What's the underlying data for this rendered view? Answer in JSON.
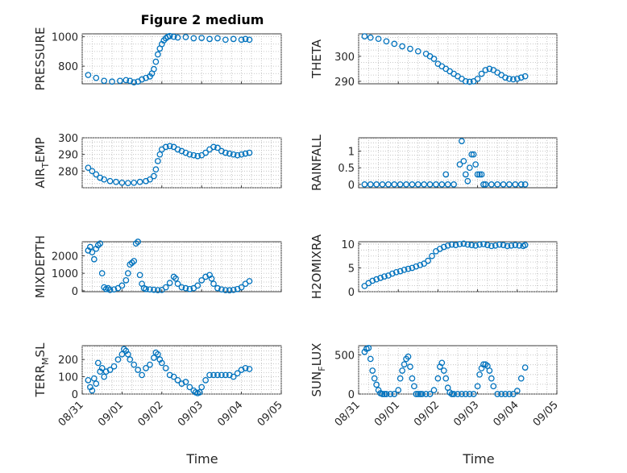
{
  "figure": {
    "title": "Figure 2 medium",
    "xlabel": "Time",
    "marker_color": "#0072BD",
    "marker": "circle"
  },
  "chart_data": [
    {
      "type": "scatter",
      "id": "pressure",
      "ylabel": "PRESSURE",
      "ylabel_sub": null,
      "title": "Figure 2 medium",
      "xlim": [
        "08/31",
        "09/05"
      ],
      "ylim": [
        680,
        1020
      ],
      "xticks": [
        "08/31",
        "09/01",
        "09/02",
        "09/03",
        "09/04",
        "09/05"
      ],
      "xtick_labels_shown": false,
      "yticks": [
        800,
        1000
      ],
      "grid": true,
      "series": [
        {
          "x": [
            0.15,
            0.35,
            0.55,
            0.75,
            0.95,
            1.1,
            1.2,
            1.3,
            1.4,
            1.5,
            1.6,
            1.7,
            1.75,
            1.8,
            1.85,
            1.9,
            1.95,
            2.0,
            2.05,
            2.1,
            2.15,
            2.2,
            2.3,
            2.4,
            2.6,
            2.8,
            3.0,
            3.2,
            3.4,
            3.6,
            3.8,
            4.0,
            4.1,
            4.2
          ],
          "y": [
            740,
            720,
            700,
            695,
            700,
            705,
            700,
            690,
            695,
            710,
            720,
            730,
            750,
            780,
            830,
            880,
            920,
            950,
            975,
            990,
            1000,
            1005,
            1000,
            995,
            998,
            990,
            992,
            985,
            990,
            980,
            985,
            980,
            985,
            980
          ]
        }
      ]
    },
    {
      "type": "scatter",
      "id": "theta",
      "ylabel": "THETA",
      "ylabel_sub": null,
      "xlim": [
        "08/31",
        "09/05"
      ],
      "ylim": [
        289,
        309
      ],
      "xticks": [
        "08/31",
        "09/01",
        "09/02",
        "09/03",
        "09/04",
        "09/05"
      ],
      "xtick_labels_shown": false,
      "yticks": [
        290,
        300
      ],
      "grid": true,
      "series": [
        {
          "x": [
            0.15,
            0.3,
            0.5,
            0.7,
            0.9,
            1.1,
            1.3,
            1.5,
            1.7,
            1.8,
            1.9,
            2.0,
            2.1,
            2.2,
            2.3,
            2.4,
            2.5,
            2.6,
            2.7,
            2.8,
            2.9,
            3.0,
            3.1,
            3.2,
            3.3,
            3.4,
            3.5,
            3.6,
            3.7,
            3.8,
            3.9,
            4.0,
            4.1,
            4.2
          ],
          "y": [
            308,
            307.5,
            307,
            306,
            305,
            304,
            303,
            302,
            301,
            300,
            299,
            297,
            296,
            295,
            294,
            293,
            292,
            291,
            290,
            289.8,
            290,
            291,
            293,
            294.5,
            295,
            294.5,
            293.5,
            292.5,
            291.5,
            291,
            290.8,
            291,
            291.5,
            292
          ]
        }
      ]
    },
    {
      "type": "scatter",
      "id": "air-temp",
      "ylabel": "AIR",
      "ylabel_sub": "T",
      "ylabel_tail": "EMP",
      "xlim": [
        "08/31",
        "09/05"
      ],
      "ylim": [
        270,
        300
      ],
      "xticks": [
        "08/31",
        "09/01",
        "09/02",
        "09/03",
        "09/04",
        "09/05"
      ],
      "xtick_labels_shown": false,
      "yticks": [
        280,
        290,
        300
      ],
      "grid": true,
      "series": [
        {
          "x": [
            0.15,
            0.25,
            0.35,
            0.45,
            0.55,
            0.7,
            0.85,
            1.0,
            1.15,
            1.3,
            1.45,
            1.6,
            1.7,
            1.8,
            1.85,
            1.9,
            1.95,
            2.0,
            2.1,
            2.2,
            2.3,
            2.4,
            2.5,
            2.6,
            2.7,
            2.8,
            2.9,
            3.0,
            3.1,
            3.2,
            3.3,
            3.4,
            3.5,
            3.6,
            3.7,
            3.8,
            3.9,
            4.0,
            4.1,
            4.2
          ],
          "y": [
            282,
            280,
            278,
            276,
            275,
            274,
            273.5,
            273,
            272.8,
            273,
            273.5,
            274,
            275,
            277,
            281,
            286,
            290,
            293,
            294.5,
            295,
            294.5,
            293,
            292,
            291,
            290,
            289.5,
            289,
            289.5,
            291,
            293,
            294.5,
            294,
            292,
            291,
            290.5,
            290,
            289.5,
            290,
            290.5,
            291
          ]
        }
      ]
    },
    {
      "type": "scatter",
      "id": "rainfall",
      "ylabel": "RAINFALL",
      "ylabel_sub": null,
      "xlim": [
        "08/31",
        "09/05"
      ],
      "ylim": [
        -0.1,
        1.4
      ],
      "xticks": [
        "08/31",
        "09/01",
        "09/02",
        "09/03",
        "09/04",
        "09/05"
      ],
      "xtick_labels_shown": false,
      "yticks": [
        0,
        0.5,
        1
      ],
      "grid": true,
      "series": [
        {
          "x": [
            0.15,
            0.3,
            0.45,
            0.6,
            0.75,
            0.9,
            1.05,
            1.2,
            1.35,
            1.5,
            1.65,
            1.8,
            1.95,
            2.1,
            2.2,
            2.25,
            2.4,
            2.55,
            2.6,
            2.65,
            2.7,
            2.75,
            2.8,
            2.85,
            2.9,
            2.95,
            3.0,
            3.05,
            3.1,
            3.15,
            3.2,
            3.35,
            3.5,
            3.65,
            3.8,
            3.95,
            4.1,
            4.2
          ],
          "y": [
            0,
            0,
            0,
            0,
            0,
            0,
            0,
            0,
            0,
            0,
            0,
            0,
            0,
            0,
            0.3,
            0,
            0,
            0.6,
            1.3,
            0.7,
            0.3,
            0.1,
            0.5,
            0.9,
            0.9,
            0.6,
            0.3,
            0.3,
            0.3,
            0,
            0,
            0,
            0,
            0,
            0,
            0,
            0,
            0
          ]
        }
      ]
    },
    {
      "type": "scatter",
      "id": "mixdepth",
      "ylabel": "MIXDEPTH",
      "ylabel_sub": null,
      "xlim": [
        "08/31",
        "09/05"
      ],
      "ylim": [
        -50,
        2800
      ],
      "xticks": [
        "08/31",
        "09/01",
        "09/02",
        "09/03",
        "09/04",
        "09/05"
      ],
      "xtick_labels_shown": false,
      "yticks": [
        0,
        1000,
        2000
      ],
      "grid": true,
      "series": [
        {
          "x": [
            0.15,
            0.2,
            0.25,
            0.3,
            0.35,
            0.4,
            0.45,
            0.5,
            0.55,
            0.6,
            0.65,
            0.7,
            0.8,
            0.9,
            1.0,
            1.1,
            1.15,
            1.2,
            1.25,
            1.3,
            1.35,
            1.4,
            1.45,
            1.5,
            1.55,
            1.6,
            1.7,
            1.8,
            1.9,
            2.0,
            2.1,
            2.2,
            2.3,
            2.35,
            2.4,
            2.5,
            2.6,
            2.7,
            2.8,
            2.9,
            3.0,
            3.1,
            3.2,
            3.25,
            3.3,
            3.4,
            3.5,
            3.6,
            3.7,
            3.8,
            3.9,
            4.0,
            4.1,
            4.2
          ],
          "y": [
            2300,
            2500,
            2200,
            1800,
            2400,
            2600,
            2700,
            1000,
            200,
            100,
            150,
            50,
            80,
            150,
            300,
            600,
            1000,
            1500,
            1600,
            1700,
            2700,
            2800,
            900,
            400,
            150,
            100,
            80,
            60,
            40,
            50,
            200,
            450,
            800,
            700,
            400,
            200,
            150,
            100,
            150,
            300,
            600,
            800,
            900,
            700,
            400,
            150,
            80,
            40,
            30,
            50,
            100,
            200,
            400,
            550
          ]
        }
      ]
    },
    {
      "type": "scatter",
      "id": "h2omixra",
      "ylabel": "H2OMIXRA",
      "ylabel_sub": null,
      "xlim": [
        "08/31",
        "09/05"
      ],
      "ylim": [
        0,
        10.5
      ],
      "xticks": [
        "08/31",
        "09/01",
        "09/02",
        "09/03",
        "09/04",
        "09/05"
      ],
      "xtick_labels_shown": false,
      "yticks": [
        0,
        5,
        10
      ],
      "grid": true,
      "series": [
        {
          "x": [
            0.15,
            0.25,
            0.35,
            0.45,
            0.55,
            0.65,
            0.75,
            0.85,
            0.95,
            1.05,
            1.15,
            1.25,
            1.35,
            1.45,
            1.55,
            1.65,
            1.75,
            1.85,
            1.95,
            2.05,
            2.15,
            2.25,
            2.35,
            2.45,
            2.55,
            2.65,
            2.75,
            2.85,
            2.95,
            3.05,
            3.15,
            3.25,
            3.35,
            3.45,
            3.55,
            3.65,
            3.75,
            3.85,
            3.95,
            4.05,
            4.15,
            4.2
          ],
          "y": [
            1.2,
            1.8,
            2.3,
            2.6,
            2.9,
            3.2,
            3.4,
            3.8,
            4.1,
            4.3,
            4.6,
            4.8,
            5.0,
            5.3,
            5.6,
            5.9,
            6.5,
            7.5,
            8.5,
            9.0,
            9.4,
            9.7,
            9.9,
            9.8,
            10.0,
            10.1,
            9.9,
            9.8,
            9.7,
            9.9,
            10.0,
            9.8,
            9.6,
            9.7,
            9.9,
            9.8,
            9.6,
            9.7,
            9.8,
            9.7,
            9.6,
            9.8
          ]
        }
      ]
    },
    {
      "type": "scatter",
      "id": "terr-msl",
      "ylabel": "TERR",
      "ylabel_sub": "M",
      "ylabel_tail": "SL",
      "xlim": [
        "08/31",
        "09/05"
      ],
      "ylim": [
        0,
        280
      ],
      "xticks": [
        "08/31",
        "09/01",
        "09/02",
        "09/03",
        "09/04",
        "09/05"
      ],
      "xtick_labels_shown": true,
      "yticks": [
        0,
        100,
        200
      ],
      "grid": true,
      "series": [
        {
          "x": [
            0.15,
            0.2,
            0.25,
            0.3,
            0.35,
            0.4,
            0.45,
            0.5,
            0.55,
            0.6,
            0.7,
            0.8,
            0.9,
            1.0,
            1.05,
            1.1,
            1.15,
            1.2,
            1.3,
            1.4,
            1.5,
            1.6,
            1.7,
            1.8,
            1.85,
            1.9,
            1.95,
            2.0,
            2.1,
            2.2,
            2.3,
            2.4,
            2.5,
            2.6,
            2.7,
            2.8,
            2.85,
            2.9,
            2.95,
            3.0,
            3.1,
            3.2,
            3.3,
            3.4,
            3.5,
            3.6,
            3.7,
            3.8,
            3.9,
            4.0,
            4.1,
            4.2
          ],
          "y": [
            80,
            40,
            20,
            90,
            60,
            180,
            130,
            150,
            100,
            130,
            140,
            160,
            200,
            230,
            260,
            250,
            230,
            200,
            170,
            140,
            110,
            150,
            170,
            210,
            240,
            230,
            200,
            180,
            150,
            110,
            100,
            80,
            60,
            70,
            40,
            20,
            10,
            5,
            10,
            40,
            80,
            110,
            110,
            110,
            110,
            110,
            110,
            100,
            120,
            140,
            150,
            145
          ]
        }
      ]
    },
    {
      "type": "scatter",
      "id": "sun-flux",
      "ylabel": "SUN",
      "ylabel_sub": "F",
      "ylabel_tail": "LUX",
      "xlim": [
        "08/31",
        "09/05"
      ],
      "ylim": [
        0,
        620
      ],
      "xticks": [
        "08/31",
        "09/01",
        "09/02",
        "09/03",
        "09/04",
        "09/05"
      ],
      "xtick_labels_shown": true,
      "yticks": [
        0,
        500
      ],
      "grid": true,
      "series": [
        {
          "x": [
            0.15,
            0.2,
            0.25,
            0.3,
            0.35,
            0.4,
            0.45,
            0.5,
            0.55,
            0.6,
            0.65,
            0.7,
            0.8,
            0.9,
            1.0,
            1.05,
            1.1,
            1.15,
            1.2,
            1.25,
            1.3,
            1.35,
            1.4,
            1.45,
            1.5,
            1.55,
            1.6,
            1.7,
            1.8,
            1.9,
            2.0,
            2.05,
            2.1,
            2.15,
            2.2,
            2.25,
            2.3,
            2.35,
            2.4,
            2.5,
            2.6,
            2.7,
            2.8,
            2.9,
            3.0,
            3.05,
            3.1,
            3.15,
            3.2,
            3.25,
            3.3,
            3.35,
            3.4,
            3.5,
            3.6,
            3.7,
            3.8,
            3.9,
            4.0,
            4.1,
            4.2
          ],
          "y": [
            540,
            580,
            590,
            450,
            300,
            200,
            120,
            50,
            10,
            0,
            0,
            0,
            0,
            0,
            50,
            200,
            300,
            380,
            450,
            480,
            350,
            200,
            100,
            0,
            0,
            0,
            0,
            0,
            0,
            50,
            200,
            350,
            400,
            300,
            200,
            80,
            20,
            0,
            0,
            0,
            0,
            0,
            0,
            0,
            100,
            250,
            330,
            380,
            380,
            360,
            300,
            200,
            100,
            0,
            0,
            0,
            0,
            0,
            40,
            200,
            340
          ]
        }
      ]
    }
  ]
}
